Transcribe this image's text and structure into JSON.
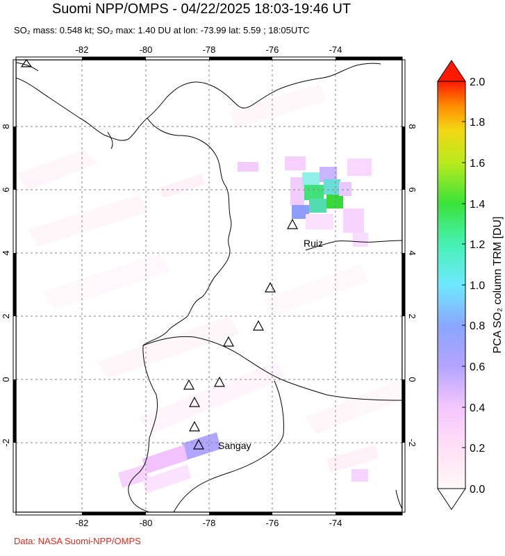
{
  "title": "Suomi NPP/OMPS - 04/22/2025 18:03-19:46 UT",
  "subtitle": "SO₂ mass: 0.548 kt; SO₂ max: 1.40 DU at lon: -73.99 lat: 5.59 ; 18:05UTC",
  "credit": "Data: NASA Suomi-NPP/OMPS",
  "map": {
    "lon_range": [
      -84,
      -72
    ],
    "lat_range": [
      -4,
      10
    ],
    "lon_ticks": [
      "-82",
      "-80",
      "-78",
      "-76",
      "-74"
    ],
    "lat_ticks": [
      "8",
      "6",
      "4",
      "2",
      "0",
      "-2"
    ],
    "volcano_labels": [
      "Ruiz",
      "Sangay"
    ]
  },
  "colorbar": {
    "title": "PCA SO₂ column TRM [DU]",
    "labels": [
      "2.0",
      "1.8",
      "1.6",
      "1.4",
      "1.2",
      "1.0",
      "0.8",
      "0.6",
      "0.4",
      "0.2",
      "0.0"
    ],
    "colors": [
      "#ffffff",
      "#ffd6f2",
      "#f2b8ff",
      "#c8aaff",
      "#9a9cff",
      "#6fd6ff",
      "#45f0f0",
      "#30e060",
      "#9ae820",
      "#e8e81a",
      "#ffb400",
      "#ff6000",
      "#ff1a00"
    ]
  }
}
